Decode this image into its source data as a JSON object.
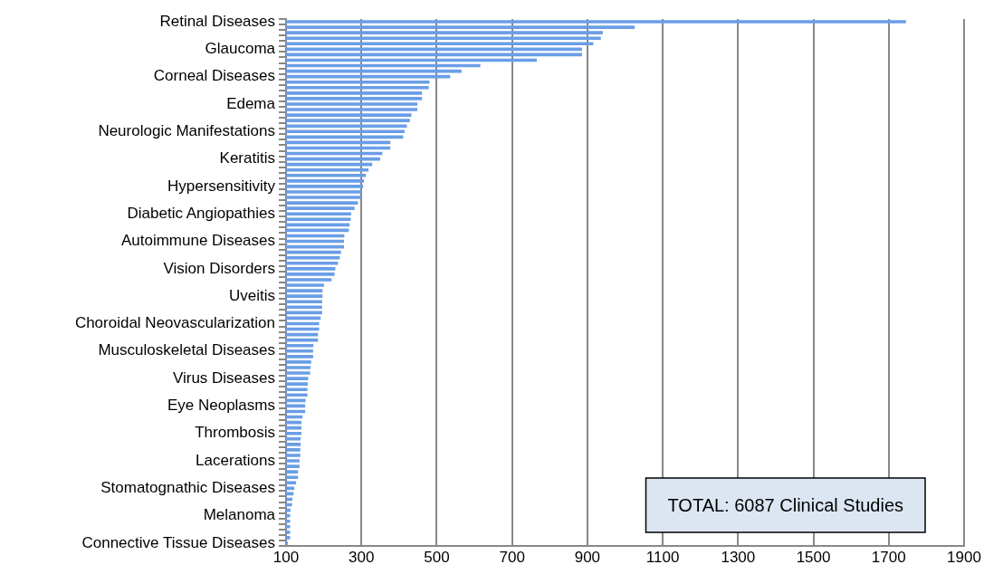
{
  "chart_data": {
    "type": "bar",
    "orientation": "horizontal",
    "grid": "x",
    "color": "#6a9ee6",
    "categories": [
      "Retinal Diseases",
      null,
      null,
      null,
      null,
      "Glaucoma",
      null,
      null,
      null,
      null,
      "Corneal Diseases",
      null,
      null,
      null,
      null,
      "Edema",
      null,
      null,
      null,
      null,
      "Neurologic Manifestations",
      null,
      null,
      null,
      null,
      "Keratitis",
      null,
      null,
      null,
      null,
      "Hypersensitivity",
      null,
      null,
      null,
      null,
      "Diabetic Angiopathies",
      null,
      null,
      null,
      null,
      "Autoimmune Diseases",
      null,
      null,
      null,
      null,
      "Vision Disorders",
      null,
      null,
      null,
      null,
      "Uveitis",
      null,
      null,
      null,
      null,
      "Choroidal Neovascularization",
      null,
      null,
      null,
      null,
      "Musculoskeletal Diseases",
      null,
      null,
      null,
      null,
      "Virus Diseases",
      null,
      null,
      null,
      null,
      "Eye Neoplasms",
      null,
      null,
      null,
      null,
      "Thrombosis",
      null,
      null,
      null,
      null,
      "Lacerations",
      null,
      null,
      null,
      null,
      "Stomatognathic Diseases",
      null,
      null,
      null,
      null,
      "Melanoma",
      null,
      null,
      null,
      null,
      "Connective Tissue Diseases"
    ],
    "values": [
      1745,
      1025,
      940,
      935,
      915,
      885,
      885,
      765,
      615,
      565,
      535,
      480,
      478,
      460,
      460,
      448,
      448,
      432,
      428,
      420,
      414,
      410,
      376,
      376,
      355,
      349,
      328,
      318,
      311,
      306,
      304,
      300,
      298,
      290,
      281,
      272,
      271,
      268,
      266,
      254,
      253,
      253,
      245,
      242,
      237,
      230,
      228,
      220,
      200,
      196,
      196,
      195,
      195,
      195,
      191,
      187,
      187,
      184,
      184,
      172,
      171,
      171,
      166,
      164,
      163,
      158,
      157,
      156,
      156,
      151,
      150,
      150,
      143,
      140,
      140,
      140,
      138,
      138,
      137,
      137,
      135,
      135,
      131,
      131,
      126,
      121,
      119,
      116,
      115,
      111,
      110,
      110,
      110,
      110,
      110,
      104
    ],
    "xlim": [
      100,
      1900
    ],
    "xticks": [
      100,
      300,
      500,
      700,
      900,
      1100,
      1300,
      1500,
      1700,
      1900
    ],
    "annotations": [
      "TOTAL: 6087 Clinical Studies"
    ]
  }
}
